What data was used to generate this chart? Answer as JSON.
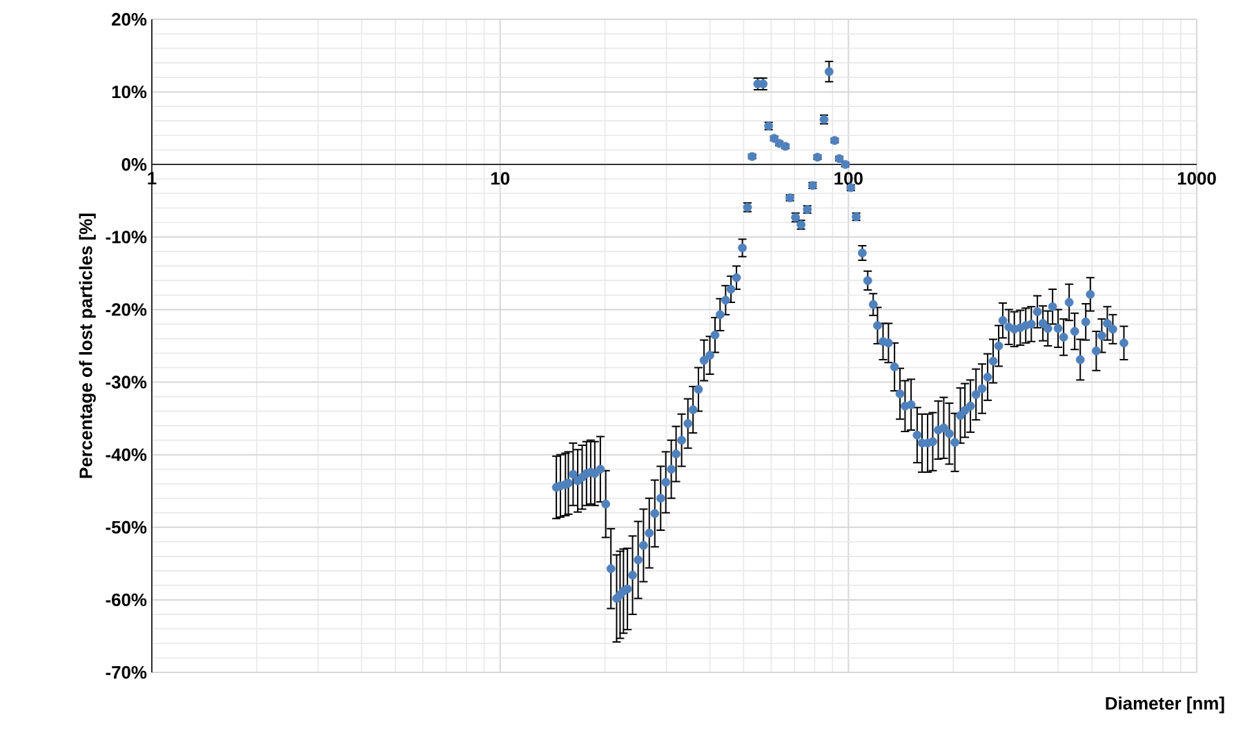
{
  "chart_data": {
    "type": "scatter",
    "xlabel": "Diameter [nm]",
    "ylabel": "Percentage of lost particles [%]",
    "color": "#4f81bd",
    "log": "x",
    "grid": true,
    "xlim": [
      1,
      1000
    ],
    "ylim": [
      -70,
      20
    ],
    "xticks": [
      1,
      10,
      100,
      1000
    ],
    "yticks": [
      {
        "value": -70,
        "label": "-70%"
      },
      {
        "value": -60,
        "label": "-60%"
      },
      {
        "value": -50,
        "label": "-50%"
      },
      {
        "value": -40,
        "label": "-40%"
      },
      {
        "value": -30,
        "label": "-30%"
      },
      {
        "value": -20,
        "label": "-20%"
      },
      {
        "value": -10,
        "label": "-10%"
      },
      {
        "value": 0,
        "label": "0%"
      },
      {
        "value": 10,
        "label": "10%"
      },
      {
        "value": 20,
        "label": "20%"
      }
    ],
    "x": [
      14.5,
      14.9,
      15.4,
      15.7,
      16.2,
      16.7,
      17.2,
      17.7,
      18.2,
      18.7,
      19.4,
      20.1,
      20.8,
      21.6,
      22.1,
      22.6,
      23.2,
      24.0,
      24.9,
      25.8,
      26.8,
      27.8,
      28.9,
      29.9,
      31.0,
      32.0,
      33.2,
      34.6,
      35.8,
      37.1,
      38.5,
      40.0,
      41.4,
      42.8,
      44.4,
      46.0,
      47.7,
      49.6,
      51.3,
      52.9,
      54.9,
      56.9,
      59.0,
      61.2,
      63.3,
      65.9,
      67.9,
      70.5,
      73.1,
      76.2,
      78.9,
      81.5,
      85.1,
      88.0,
      91.3,
      94.1,
      97.9,
      101.6,
      105.3,
      109.6,
      113.6,
      117.8,
      121.2,
      125.7,
      130.3,
      135.6,
      140.6,
      145.4,
      151.3,
      157.5,
      162.7,
      168.8,
      174.6,
      181.1,
      187.8,
      194.8,
      202.1,
      209.6,
      216.0,
      224.0,
      232.4,
      241.9,
      251.0,
      260.3,
      270.0,
      277.5,
      288.6,
      299.4,
      311.4,
      322.9,
      335.0,
      348.7,
      361.7,
      373.8,
      385.6,
      399.9,
      414.8,
      430.2,
      446.3,
      463.0,
      480.1,
      494.8,
      514.6,
      533.8,
      553.7,
      574.3,
      617.9
    ],
    "values": [
      -44.5,
      -44.3,
      -44.1,
      -43.9,
      -42.7,
      -43.6,
      -43.1,
      -42.6,
      -42.4,
      -42.6,
      -42.0,
      -46.8,
      -55.7,
      -59.8,
      -59.3,
      -58.8,
      -58.5,
      -56.6,
      -54.5,
      -52.5,
      -50.8,
      -48.1,
      -46.0,
      -43.8,
      -42.0,
      -39.9,
      -38.0,
      -35.7,
      -33.8,
      -31.0,
      -27.0,
      -26.3,
      -23.5,
      -20.7,
      -18.7,
      -17.2,
      -15.6,
      -11.5,
      -5.9,
      1.1,
      11.1,
      11.1,
      5.3,
      3.6,
      2.9,
      2.5,
      -4.6,
      -7.3,
      -8.3,
      -6.2,
      -2.9,
      1.0,
      6.2,
      12.8,
      3.3,
      0.8,
      0.0,
      -3.2,
      -7.2,
      -12.2,
      -16.0,
      -19.3,
      -22.2,
      -24.4,
      -24.6,
      -27.9,
      -31.6,
      -33.3,
      -33.1,
      -37.3,
      -38.4,
      -38.4,
      -38.2,
      -36.6,
      -36.3,
      -37.1,
      -38.3,
      -34.6,
      -33.9,
      -33.3,
      -31.7,
      -30.9,
      -29.3,
      -27.1,
      -25.0,
      -21.5,
      -22.4,
      -22.7,
      -22.5,
      -22.2,
      -22.0,
      -20.3,
      -21.9,
      -22.6,
      -19.6,
      -22.6,
      -23.8,
      -19.0,
      -23.0,
      -26.9,
      -21.7,
      -17.9,
      -25.7,
      -23.6,
      -21.9,
      -22.7,
      -24.6
    ],
    "errors": [
      4.3,
      4.3,
      4.3,
      4.3,
      4.3,
      4.3,
      4.4,
      4.4,
      4.4,
      4.4,
      4.5,
      4.6,
      5.5,
      6.0,
      6.0,
      5.8,
      5.6,
      5.4,
      5.3,
      5.0,
      4.8,
      4.6,
      4.4,
      4.2,
      4.0,
      3.8,
      3.6,
      3.4,
      3.2,
      3.0,
      2.8,
      2.6,
      2.4,
      2.2,
      2.0,
      1.8,
      1.6,
      1.2,
      0.6,
      0.3,
      0.8,
      0.8,
      0.5,
      0.3,
      0.3,
      0.3,
      0.4,
      0.6,
      0.6,
      0.5,
      0.4,
      0.3,
      0.6,
      1.4,
      0.3,
      0.3,
      0.3,
      0.4,
      0.5,
      1.0,
      1.3,
      1.5,
      2.5,
      2.5,
      2.7,
      3.3,
      3.5,
      3.5,
      3.5,
      3.8,
      4.0,
      4.0,
      4.0,
      4.0,
      4.2,
      4.2,
      4.0,
      3.8,
      3.7,
      3.6,
      3.5,
      3.4,
      3.2,
      3.0,
      2.8,
      2.4,
      2.4,
      2.4,
      2.4,
      2.4,
      2.4,
      2.2,
      2.4,
      2.4,
      2.4,
      2.6,
      2.5,
      2.5,
      2.5,
      2.8,
      2.5,
      2.3,
      2.7,
      2.3,
      2.3,
      2.0,
      2.3
    ]
  }
}
